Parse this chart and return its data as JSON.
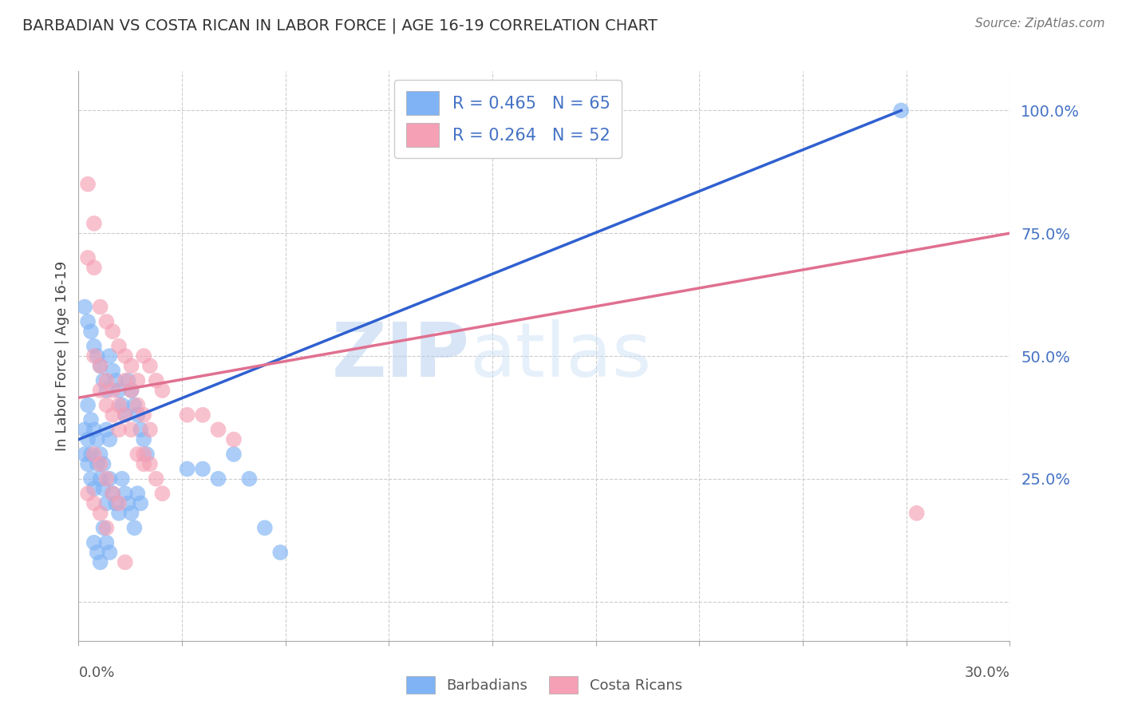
{
  "title": "BARBADIAN VS COSTA RICAN IN LABOR FORCE | AGE 16-19 CORRELATION CHART",
  "source": "Source: ZipAtlas.com",
  "ylabel_label": "In Labor Force | Age 16-19",
  "x_min": 0.0,
  "x_max": 0.3,
  "y_min": -0.08,
  "y_max": 1.08,
  "barbadian_color": "#7fb3f5",
  "costa_rican_color": "#f5a0b5",
  "trend_blue_color": "#3060d0",
  "trend_pink_color": "#e07090",
  "watermark_color": "#ccddf5",
  "blue_legend_label": "R = 0.465   N = 65",
  "pink_legend_label": "R = 0.264   N = 52",
  "barbadians_label": "Barbadians",
  "costa_ricans_label": "Costa Ricans",
  "legend_text_color": "#4472c4",
  "y_tick_positions": [
    0.0,
    0.25,
    0.5,
    0.75,
    1.0
  ],
  "y_tick_labels": [
    "",
    "25.0%",
    "50.0%",
    "75.0%",
    "100.0%"
  ],
  "blue_trend_x0": 0.0,
  "blue_trend_y0": 0.33,
  "blue_trend_x1": 0.265,
  "blue_trend_y1": 1.0,
  "pink_trend_x0": 0.0,
  "pink_trend_y0": 0.415,
  "pink_trend_x1": 0.3,
  "pink_trend_y1": 0.75,
  "blue_scatter_x": [
    0.002,
    0.003,
    0.004,
    0.005,
    0.006,
    0.007,
    0.008,
    0.009,
    0.01,
    0.011,
    0.012,
    0.013,
    0.014,
    0.015,
    0.016,
    0.017,
    0.018,
    0.019,
    0.02,
    0.021,
    0.022,
    0.003,
    0.004,
    0.005,
    0.006,
    0.007,
    0.008,
    0.009,
    0.01,
    0.002,
    0.003,
    0.004,
    0.005,
    0.006,
    0.007,
    0.008,
    0.009,
    0.01,
    0.011,
    0.012,
    0.013,
    0.014,
    0.015,
    0.016,
    0.017,
    0.018,
    0.019,
    0.02,
    0.035,
    0.04,
    0.045,
    0.05,
    0.055,
    0.06,
    0.065,
    0.002,
    0.003,
    0.004,
    0.005,
    0.006,
    0.007,
    0.008,
    0.009,
    0.01,
    0.265
  ],
  "blue_scatter_y": [
    0.6,
    0.57,
    0.55,
    0.52,
    0.5,
    0.48,
    0.45,
    0.43,
    0.5,
    0.47,
    0.45,
    0.43,
    0.4,
    0.38,
    0.45,
    0.43,
    0.4,
    0.38,
    0.35,
    0.33,
    0.3,
    0.4,
    0.37,
    0.35,
    0.33,
    0.3,
    0.28,
    0.35,
    0.33,
    0.3,
    0.28,
    0.25,
    0.23,
    0.28,
    0.25,
    0.23,
    0.2,
    0.25,
    0.22,
    0.2,
    0.18,
    0.25,
    0.22,
    0.2,
    0.18,
    0.15,
    0.22,
    0.2,
    0.27,
    0.27,
    0.25,
    0.3,
    0.25,
    0.15,
    0.1,
    0.35,
    0.33,
    0.3,
    0.12,
    0.1,
    0.08,
    0.15,
    0.12,
    0.1,
    1.0
  ],
  "pink_scatter_x": [
    0.003,
    0.005,
    0.007,
    0.009,
    0.011,
    0.013,
    0.015,
    0.017,
    0.019,
    0.021,
    0.023,
    0.025,
    0.027,
    0.003,
    0.005,
    0.007,
    0.009,
    0.011,
    0.013,
    0.015,
    0.017,
    0.019,
    0.021,
    0.023,
    0.005,
    0.007,
    0.009,
    0.011,
    0.013,
    0.015,
    0.017,
    0.019,
    0.021,
    0.035,
    0.04,
    0.045,
    0.05,
    0.021,
    0.023,
    0.025,
    0.027,
    0.005,
    0.007,
    0.009,
    0.011,
    0.013,
    0.003,
    0.005,
    0.007,
    0.009,
    0.015,
    0.27
  ],
  "pink_scatter_y": [
    0.85,
    0.77,
    0.6,
    0.57,
    0.55,
    0.52,
    0.5,
    0.48,
    0.45,
    0.5,
    0.48,
    0.45,
    0.43,
    0.7,
    0.68,
    0.43,
    0.4,
    0.38,
    0.35,
    0.45,
    0.43,
    0.4,
    0.38,
    0.35,
    0.5,
    0.48,
    0.45,
    0.43,
    0.4,
    0.38,
    0.35,
    0.3,
    0.28,
    0.38,
    0.38,
    0.35,
    0.33,
    0.3,
    0.28,
    0.25,
    0.22,
    0.3,
    0.28,
    0.25,
    0.22,
    0.2,
    0.22,
    0.2,
    0.18,
    0.15,
    0.08,
    0.18
  ]
}
